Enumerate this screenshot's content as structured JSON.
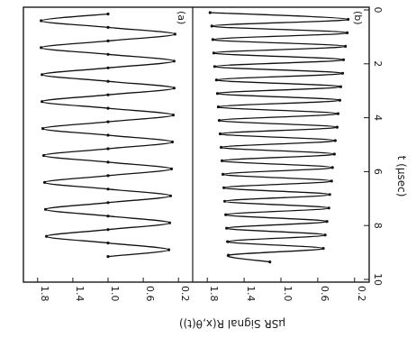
{
  "chart_data": [
    {
      "type": "line",
      "panel_label": "(a)",
      "series": [
        {
          "x": [
            0.15,
            0.4,
            0.65,
            0.9,
            1.15,
            1.4,
            1.65,
            1.9,
            2.15,
            2.4,
            2.65,
            2.9,
            3.15,
            3.4,
            3.65,
            3.9,
            4.15,
            4.4,
            4.65,
            4.9,
            5.15,
            5.4,
            5.65,
            5.9,
            6.15,
            6.4,
            6.65,
            6.9,
            7.15,
            7.4,
            7.65,
            7.9,
            8.15,
            8.4,
            8.65,
            8.9,
            9.15
          ],
          "y": [
            1.0,
            1.76,
            1.0,
            0.24,
            1.0,
            1.76,
            1.0,
            0.25,
            1.0,
            1.75,
            1.0,
            0.25,
            1.0,
            1.75,
            1.0,
            0.26,
            1.0,
            1.74,
            1.0,
            0.27,
            1.0,
            1.73,
            1.0,
            0.28,
            1.0,
            1.72,
            1.0,
            0.29,
            1.0,
            1.71,
            1.0,
            0.3,
            1.0,
            1.7,
            1.0,
            0.31,
            1.0
          ]
        }
      ],
      "xlim": [
        0,
        10
      ],
      "ylim": [
        0.1,
        1.9
      ],
      "yticks": [
        "0.2",
        "0.6",
        "1.0",
        "1.4",
        "1.8"
      ],
      "ylabel": "μSR Signal R(x,θ(t))"
    },
    {
      "type": "line",
      "panel_label": "(b)",
      "series": [
        {
          "x": [
            0.1,
            0.35,
            0.6,
            0.85,
            1.1,
            1.35,
            1.6,
            1.85,
            2.1,
            2.35,
            2.6,
            2.85,
            3.1,
            3.35,
            3.6,
            3.85,
            4.1,
            4.35,
            4.6,
            4.85,
            5.1,
            5.35,
            5.6,
            5.85,
            6.1,
            6.35,
            6.6,
            6.85,
            7.1,
            7.35,
            7.6,
            7.85,
            8.1,
            8.35,
            8.6,
            8.85,
            9.1,
            9.35
          ],
          "y": [
            1.77,
            0.27,
            1.75,
            0.28,
            1.74,
            0.3,
            1.73,
            0.32,
            1.72,
            0.33,
            1.7,
            0.35,
            1.69,
            0.36,
            1.68,
            0.38,
            1.67,
            0.39,
            1.66,
            0.41,
            1.65,
            0.42,
            1.64,
            0.44,
            1.63,
            0.45,
            1.62,
            0.47,
            1.61,
            0.48,
            1.6,
            0.5,
            1.59,
            0.52,
            1.58,
            0.54,
            1.57,
            1.12
          ]
        }
      ],
      "xlim": [
        0,
        10
      ],
      "ylim": [
        0.1,
        1.9
      ],
      "yticks": [
        "0.2",
        "0.6",
        "1.0",
        "1.4",
        "1.8"
      ],
      "xticks": [
        "0",
        "2",
        "4",
        "6",
        "8",
        "10"
      ],
      "xlabel": "t (μsec)"
    }
  ]
}
